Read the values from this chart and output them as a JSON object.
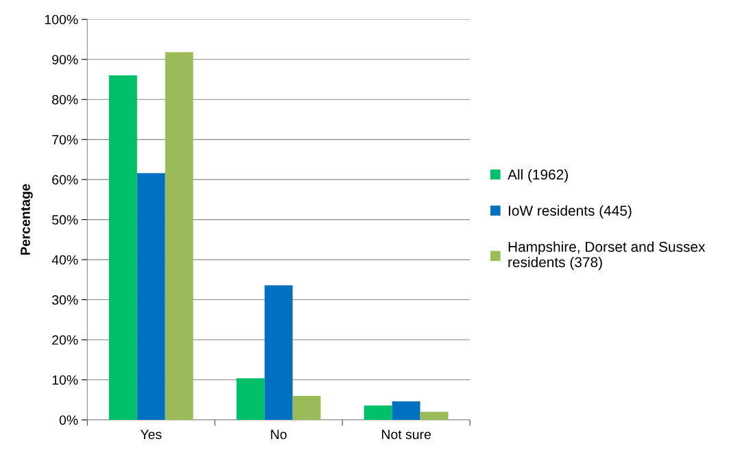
{
  "chart_data": {
    "type": "bar",
    "ylabel": "Percentage",
    "categories": [
      "Yes",
      "No",
      "Not sure"
    ],
    "series": [
      {
        "name": "All (1962)",
        "color": "#00c06a",
        "values": [
          86,
          10.4,
          3.6
        ]
      },
      {
        "name": "IoW residents (445)",
        "color": "#0070c0",
        "values": [
          61.6,
          33.6,
          4.6
        ]
      },
      {
        "name": "Hampshire, Dorset and Sussex\nresidents (378)",
        "color": "#9bbb59",
        "values": [
          91.8,
          6,
          2
        ]
      }
    ],
    "ylim": [
      0,
      100
    ],
    "yticks": [
      {
        "value": 0,
        "label": "0%"
      },
      {
        "value": 10,
        "label": "10%"
      },
      {
        "value": 20,
        "label": "20%"
      },
      {
        "value": 30,
        "label": "30%"
      },
      {
        "value": 40,
        "label": "40%"
      },
      {
        "value": 50,
        "label": "50%"
      },
      {
        "value": 60,
        "label": "60%"
      },
      {
        "value": 70,
        "label": "70%"
      },
      {
        "value": 80,
        "label": "80%"
      },
      {
        "value": 90,
        "label": "90%"
      },
      {
        "value": 100,
        "label": "100%"
      }
    ],
    "grid": "y",
    "legend": "right"
  }
}
